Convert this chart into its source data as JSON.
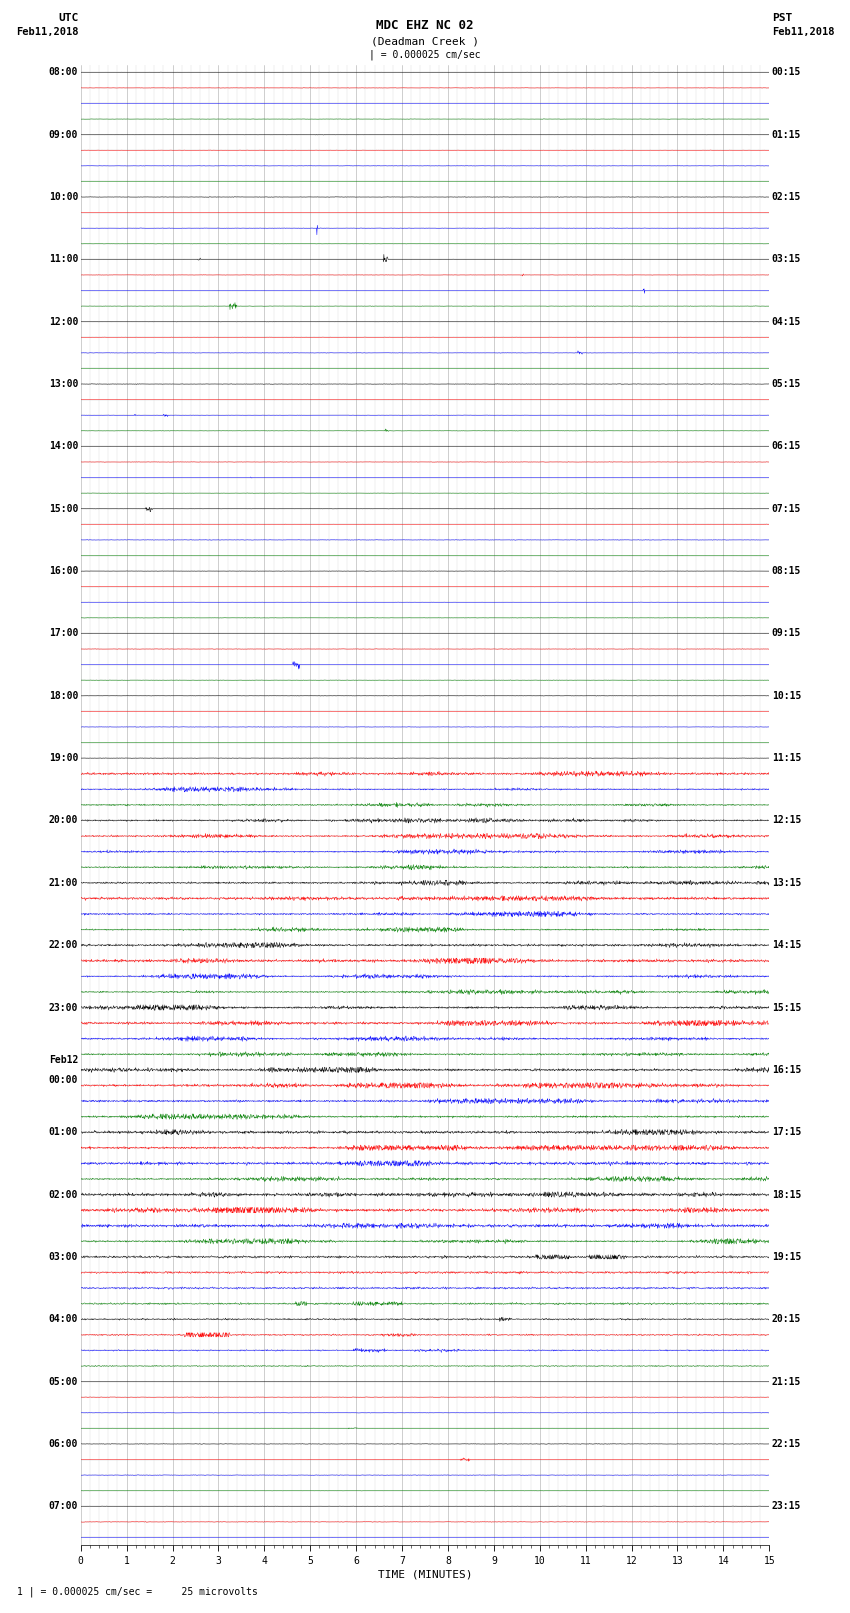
{
  "title_line1": "MDC EHZ NC 02",
  "title_line2": "(Deadman Creek )",
  "title_scale": "| = 0.000025 cm/sec",
  "label_utc": "UTC",
  "label_pst": "PST",
  "date_left": "Feb11,2018",
  "date_right": "Feb11,2018",
  "xlabel": "TIME (MINUTES)",
  "footer": "1 | = 0.000025 cm/sec =     25 microvolts",
  "trace_colors": [
    "black",
    "red",
    "blue",
    "green"
  ],
  "utc_times": [
    "08:00",
    "",
    "",
    "",
    "09:00",
    "",
    "",
    "",
    "10:00",
    "",
    "",
    "",
    "11:00",
    "",
    "",
    "",
    "12:00",
    "",
    "",
    "",
    "13:00",
    "",
    "",
    "",
    "14:00",
    "",
    "",
    "",
    "15:00",
    "",
    "",
    "",
    "16:00",
    "",
    "",
    "",
    "17:00",
    "",
    "",
    "",
    "18:00",
    "",
    "",
    "",
    "19:00",
    "",
    "",
    "",
    "20:00",
    "",
    "",
    "",
    "21:00",
    "",
    "",
    "",
    "22:00",
    "",
    "",
    "",
    "23:00",
    "",
    "",
    "",
    "Feb12\n00:00",
    "",
    "",
    "",
    "01:00",
    "",
    "",
    "",
    "02:00",
    "",
    "",
    "",
    "03:00",
    "",
    "",
    "",
    "04:00",
    "",
    "",
    "",
    "05:00",
    "",
    "",
    "",
    "06:00",
    "",
    "",
    "",
    "07:00",
    "",
    ""
  ],
  "pst_times": [
    "00:15",
    "",
    "",
    "",
    "01:15",
    "",
    "",
    "",
    "02:15",
    "",
    "",
    "",
    "03:15",
    "",
    "",
    "",
    "04:15",
    "",
    "",
    "",
    "05:15",
    "",
    "",
    "",
    "06:15",
    "",
    "",
    "",
    "07:15",
    "",
    "",
    "",
    "08:15",
    "",
    "",
    "",
    "09:15",
    "",
    "",
    "",
    "10:15",
    "",
    "",
    "",
    "11:15",
    "",
    "",
    "",
    "12:15",
    "",
    "",
    "",
    "13:15",
    "",
    "",
    "",
    "14:15",
    "",
    "",
    "",
    "15:15",
    "",
    "",
    "",
    "16:15",
    "",
    "",
    "",
    "17:15",
    "",
    "",
    "",
    "18:15",
    "",
    "",
    "",
    "19:15",
    "",
    "",
    "",
    "20:15",
    "",
    "",
    "",
    "21:15",
    "",
    "",
    "",
    "22:15",
    "",
    "",
    "",
    "23:15",
    "",
    ""
  ],
  "n_rows": 95,
  "n_points": 1800,
  "x_min": 0,
  "x_max": 15,
  "bg_color": "white",
  "grid_color": "#aaaaaa",
  "label_fontsize": 7,
  "title_fontsize": 9,
  "figsize": [
    8.5,
    16.13
  ],
  "dpi": 100,
  "row_amplitude": 0.38
}
